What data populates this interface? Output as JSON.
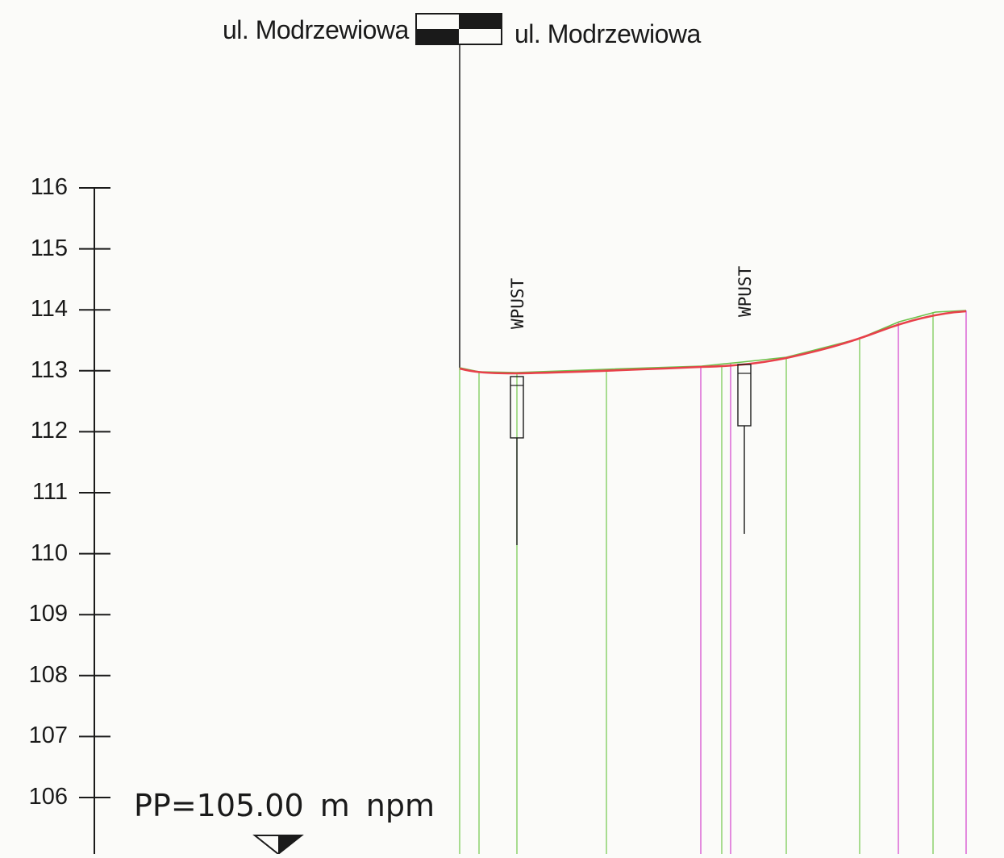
{
  "street": {
    "left_label": "ul. Modrzewiowa",
    "right_label": "ul. Modrzewiowa"
  },
  "elevation_scale": {
    "ticks": [
      116,
      115,
      114,
      113,
      112,
      111,
      110,
      109,
      108,
      107,
      106
    ],
    "unit": "m npm"
  },
  "reference_plane": {
    "label": "PP=105.00  m  npm",
    "value": 105.0
  },
  "inlets": [
    {
      "label": "WPUST"
    },
    {
      "label": "WPUST"
    }
  ],
  "colors": {
    "terrain_line": "#e8404a",
    "design_line": "#6cc24a",
    "green_verticals": "#7ccc58",
    "magenta_verticals": "#d64fd0",
    "ink": "#1a1a1a",
    "paper": "#fbfbf9"
  }
}
